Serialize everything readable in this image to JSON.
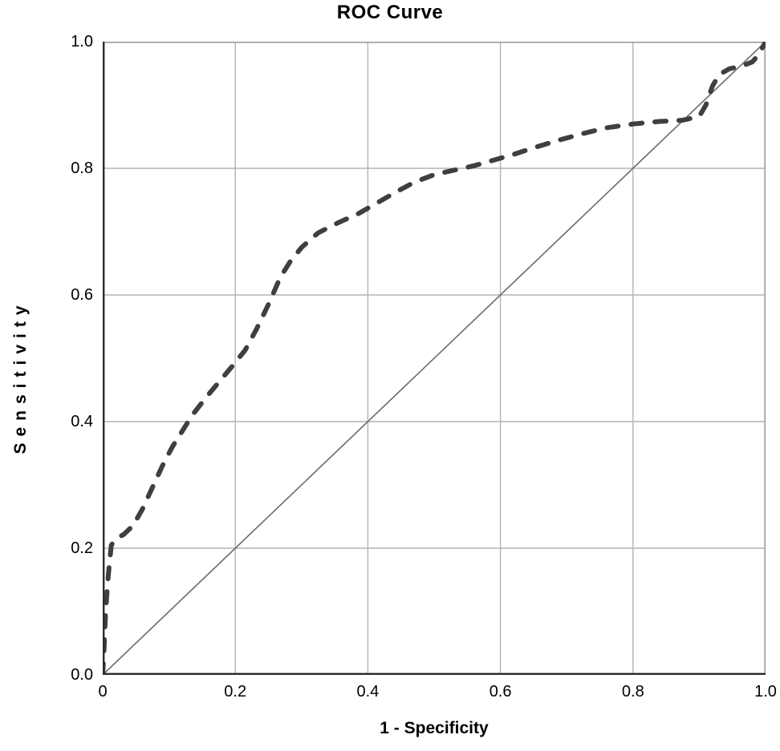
{
  "chart_data": {
    "type": "line",
    "title": "ROC Curve",
    "xlabel": "1 - Specificity",
    "ylabel": "Sensitivity",
    "xlim": [
      0,
      1
    ],
    "ylim": [
      0,
      1
    ],
    "grid": true,
    "legend": false,
    "x_ticks": {
      "values": [
        0,
        0.2,
        0.4,
        0.6,
        0.8,
        1.0
      ],
      "labels": [
        "0",
        "0.2",
        "0.4",
        "0.6",
        "0.8",
        "1.0"
      ]
    },
    "y_ticks": {
      "values": [
        0,
        0.2,
        0.4,
        0.6,
        0.8,
        1.0
      ],
      "labels": [
        "0.0",
        "0.2",
        "0.4",
        "0.6",
        "0.8",
        "1.0"
      ]
    },
    "gridline_values": [
      0.2,
      0.4,
      0.6,
      0.8
    ],
    "series": [
      {
        "name": "ROC curve",
        "style": "dashed",
        "color": "#3f3f3f",
        "width": 6,
        "points": [
          [
            0,
            0
          ],
          [
            0.002,
            0.04
          ],
          [
            0.004,
            0.09
          ],
          [
            0.007,
            0.14
          ],
          [
            0.01,
            0.175
          ],
          [
            0.013,
            0.205
          ],
          [
            0.02,
            0.215
          ],
          [
            0.032,
            0.222
          ],
          [
            0.046,
            0.236
          ],
          [
            0.06,
            0.262
          ],
          [
            0.075,
            0.296
          ],
          [
            0.09,
            0.33
          ],
          [
            0.105,
            0.36
          ],
          [
            0.12,
            0.385
          ],
          [
            0.135,
            0.41
          ],
          [
            0.155,
            0.437
          ],
          [
            0.175,
            0.462
          ],
          [
            0.195,
            0.487
          ],
          [
            0.215,
            0.513
          ],
          [
            0.232,
            0.546
          ],
          [
            0.25,
            0.585
          ],
          [
            0.268,
            0.628
          ],
          [
            0.283,
            0.653
          ],
          [
            0.3,
            0.675
          ],
          [
            0.325,
            0.698
          ],
          [
            0.355,
            0.714
          ],
          [
            0.385,
            0.728
          ],
          [
            0.415,
            0.746
          ],
          [
            0.445,
            0.764
          ],
          [
            0.47,
            0.778
          ],
          [
            0.5,
            0.79
          ],
          [
            0.53,
            0.797
          ],
          [
            0.56,
            0.804
          ],
          [
            0.59,
            0.813
          ],
          [
            0.62,
            0.822
          ],
          [
            0.655,
            0.834
          ],
          [
            0.69,
            0.845
          ],
          [
            0.725,
            0.855
          ],
          [
            0.76,
            0.864
          ],
          [
            0.8,
            0.87
          ],
          [
            0.84,
            0.874
          ],
          [
            0.875,
            0.876
          ],
          [
            0.9,
            0.882
          ],
          [
            0.91,
            0.9
          ],
          [
            0.92,
            0.93
          ],
          [
            0.93,
            0.948
          ],
          [
            0.945,
            0.957
          ],
          [
            0.965,
            0.962
          ],
          [
            0.98,
            0.968
          ],
          [
            0.99,
            0.98
          ],
          [
            1,
            1
          ]
        ]
      },
      {
        "name": "Reference line",
        "style": "solid",
        "color": "#6b6b6b",
        "width": 1.6,
        "points": [
          [
            0,
            0
          ],
          [
            1,
            1
          ]
        ]
      }
    ],
    "colors": {
      "background": "#ffffff",
      "text": "#000000",
      "grid": "#b3b3b3",
      "frame": "#9c9c9c",
      "axis": "#2b2b2b",
      "curve": "#3f3f3f",
      "reference": "#6b6b6b"
    }
  }
}
